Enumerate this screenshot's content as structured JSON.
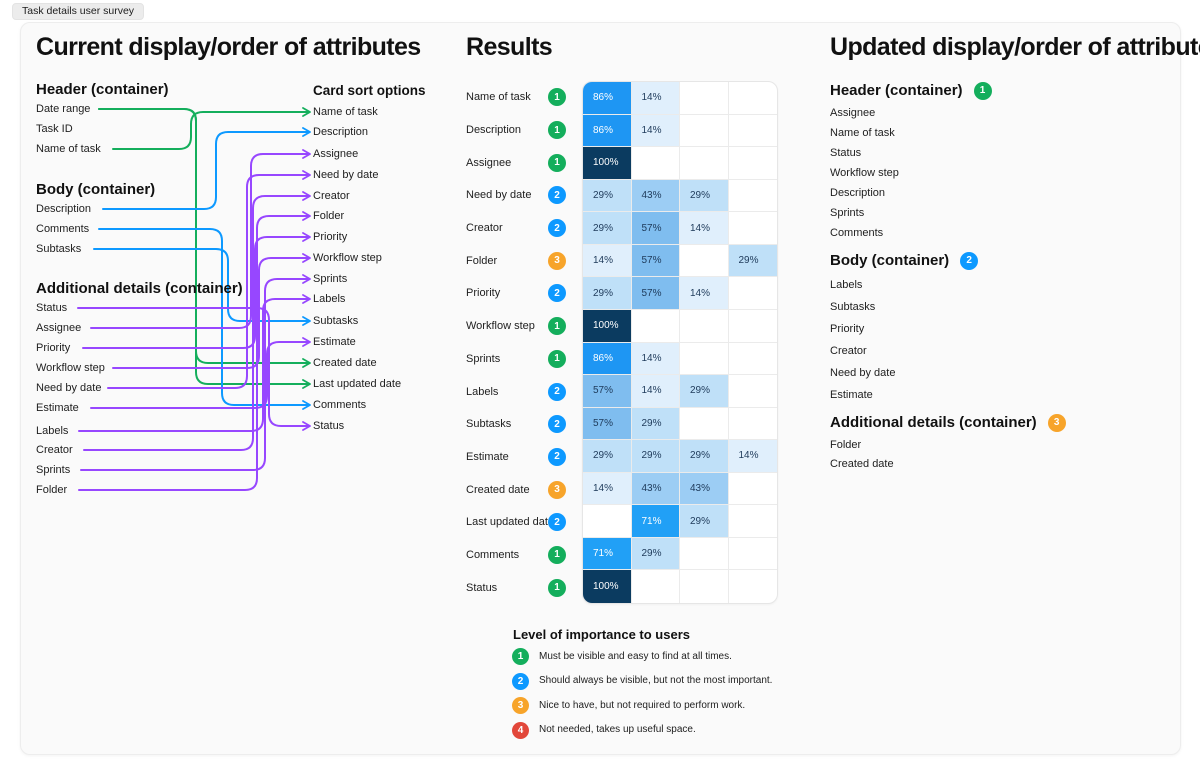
{
  "section_label": "Task details user survey",
  "colors": {
    "green": "#14AE5C",
    "blue": "#0D99FF",
    "purple": "#9747FF",
    "orange": "#F7A42A",
    "red": "#E2473A",
    "heat": {
      "14": "#E0EFFC",
      "29": "#BFE0F8",
      "43": "#9CCDF4",
      "57": "#7FBDEF",
      "71": "#21A0F6",
      "86": "#1E96F3",
      "100": "#0B3B60"
    }
  },
  "left": {
    "title": "Current display/order of attributes",
    "groups": [
      {
        "heading": "Header (container)",
        "items": [
          "Date range",
          "Task ID",
          "Name of task"
        ]
      },
      {
        "heading": "Body (container)",
        "items": [
          "Description",
          "Comments",
          "Subtasks"
        ]
      },
      {
        "heading": "Additional details (container)",
        "items": [
          "Status",
          "Assignee",
          "Priority",
          "Workflow step",
          "Need by date",
          "Estimate",
          "Labels",
          "Creator",
          "Sprints",
          "Folder"
        ]
      }
    ],
    "card_sort": {
      "heading": "Card sort options",
      "options": [
        "Name of task",
        "Description",
        "Assignee",
        "Need by date",
        "Creator",
        "Folder",
        "Priority",
        "Workflow step",
        "Sprints",
        "Labels",
        "Subtasks",
        "Estimate",
        "Created date",
        "Last updated date",
        "Comments",
        "Status"
      ]
    },
    "connections": [
      {
        "from": "Date range",
        "to": "Created date",
        "color": "green"
      },
      {
        "from": "Date range",
        "to": "Last updated date",
        "color": "green"
      },
      {
        "from": "Name of task",
        "to": "Name of task",
        "color": "green"
      },
      {
        "from": "Description",
        "to": "Description",
        "color": "blue"
      },
      {
        "from": "Comments",
        "to": "Comments",
        "color": "blue"
      },
      {
        "from": "Subtasks",
        "to": "Subtasks",
        "color": "blue"
      },
      {
        "from": "Status",
        "to": "Status",
        "color": "purple"
      },
      {
        "from": "Assignee",
        "to": "Assignee",
        "color": "purple"
      },
      {
        "from": "Priority",
        "to": "Priority",
        "color": "purple"
      },
      {
        "from": "Workflow step",
        "to": "Workflow step",
        "color": "purple"
      },
      {
        "from": "Need by date",
        "to": "Need by date",
        "color": "purple"
      },
      {
        "from": "Estimate",
        "to": "Estimate",
        "color": "purple"
      },
      {
        "from": "Labels",
        "to": "Labels",
        "color": "purple"
      },
      {
        "from": "Creator",
        "to": "Creator",
        "color": "purple"
      },
      {
        "from": "Sprints",
        "to": "Sprints",
        "color": "purple"
      },
      {
        "from": "Folder",
        "to": "Folder",
        "color": "purple"
      }
    ]
  },
  "results": {
    "title": "Results",
    "rows": [
      {
        "label": "Name of task",
        "importance": 1,
        "values": [
          86,
          14,
          null,
          null
        ]
      },
      {
        "label": "Description",
        "importance": 1,
        "values": [
          86,
          14,
          null,
          null
        ]
      },
      {
        "label": "Assignee",
        "importance": 1,
        "values": [
          100,
          null,
          null,
          null
        ]
      },
      {
        "label": "Need by date",
        "importance": 2,
        "values": [
          29,
          43,
          29,
          null
        ]
      },
      {
        "label": "Creator",
        "importance": 2,
        "values": [
          29,
          57,
          14,
          null
        ]
      },
      {
        "label": "Folder",
        "importance": 3,
        "values": [
          14,
          57,
          null,
          29
        ]
      },
      {
        "label": "Priority",
        "importance": 2,
        "values": [
          29,
          57,
          14,
          null
        ]
      },
      {
        "label": "Workflow step",
        "importance": 1,
        "values": [
          100,
          null,
          null,
          null
        ]
      },
      {
        "label": "Sprints",
        "importance": 1,
        "values": [
          86,
          14,
          null,
          null
        ]
      },
      {
        "label": "Labels",
        "importance": 2,
        "values": [
          57,
          14,
          29,
          null
        ]
      },
      {
        "label": "Subtasks",
        "importance": 2,
        "values": [
          57,
          29,
          null,
          null
        ]
      },
      {
        "label": "Estimate",
        "importance": 2,
        "values": [
          29,
          29,
          29,
          14
        ]
      },
      {
        "label": "Created date",
        "importance": 3,
        "values": [
          14,
          43,
          43,
          null
        ]
      },
      {
        "label": "Last updated date",
        "importance": 2,
        "values": [
          null,
          71,
          29,
          null
        ]
      },
      {
        "label": "Comments",
        "importance": 1,
        "values": [
          71,
          29,
          null,
          null
        ]
      },
      {
        "label": "Status",
        "importance": 1,
        "values": [
          100,
          null,
          null,
          null
        ]
      }
    ],
    "legend": {
      "heading": "Level of importance to users",
      "items": [
        {
          "level": 1,
          "color": "green",
          "text": "Must be visible and easy to find at all times."
        },
        {
          "level": 2,
          "color": "blue",
          "text": "Should always be visible, but not the most important."
        },
        {
          "level": 3,
          "color": "orange",
          "text": "Nice to have, but not required to perform work."
        },
        {
          "level": 4,
          "color": "red",
          "text": "Not needed, takes up useful space."
        }
      ]
    }
  },
  "updated": {
    "title": "Updated display/order of attributes",
    "groups": [
      {
        "heading": "Header (container)",
        "importance": 1,
        "items": [
          "Assignee",
          "Name of task",
          "Status",
          "Workflow step",
          "Description",
          "Sprints",
          "Comments"
        ]
      },
      {
        "heading": "Body (container)",
        "importance": 2,
        "items": [
          "Labels",
          "Subtasks",
          "Priority",
          "Creator",
          "Need by date",
          "Estimate"
        ]
      },
      {
        "heading": "Additional details (container)",
        "importance": 3,
        "items": [
          "Folder",
          "Created date"
        ]
      }
    ]
  }
}
